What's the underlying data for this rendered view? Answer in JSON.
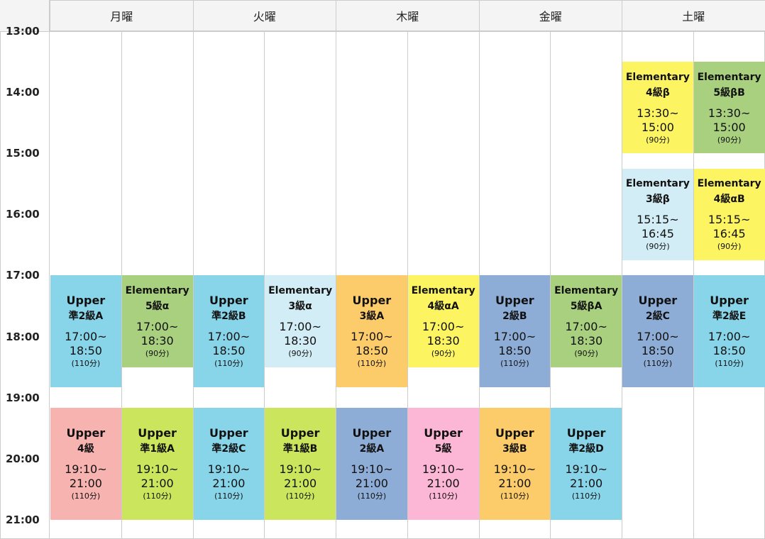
{
  "time_labels": [
    "13:00",
    "14:00",
    "15:00",
    "16:00",
    "17:00",
    "18:00",
    "19:00",
    "20:00",
    "21:00"
  ],
  "days": [
    {
      "name": "月曜",
      "columns": [
        [
          {
            "level": "Upper",
            "name": "準2級A",
            "start": "17:00~",
            "end": "18:50",
            "duration": "(110分)",
            "color": "#88d4e8"
          },
          {
            "level": "Upper",
            "name": "4級",
            "start": "19:10~",
            "end": "21:00",
            "duration": "(110分)",
            "color": "#f6b3b0"
          }
        ],
        [
          {
            "level": "Elementary",
            "name": "5級α",
            "start": "17:00~",
            "end": "18:30",
            "duration": "(90分)",
            "color": "#a8d07f"
          },
          {
            "level": "Upper",
            "name": "準1級A",
            "start": "19:10~",
            "end": "21:00",
            "duration": "(110分)",
            "color": "#cbe55c"
          }
        ]
      ]
    },
    {
      "name": "火曜",
      "columns": [
        [
          {
            "level": "Upper",
            "name": "準2級B",
            "start": "17:00~",
            "end": "18:50",
            "duration": "(110分)",
            "color": "#88d4e8"
          },
          {
            "level": "Upper",
            "name": "準2級C",
            "start": "19:10~",
            "end": "21:00",
            "duration": "(110分)",
            "color": "#88d4e8"
          }
        ],
        [
          {
            "level": "Elementary",
            "name": "3級α",
            "start": "17:00~",
            "end": "18:30",
            "duration": "(90分)",
            "color": "#d2edf5"
          },
          {
            "level": "Upper",
            "name": "準1級B",
            "start": "19:10~",
            "end": "21:00",
            "duration": "(110分)",
            "color": "#cbe55c"
          }
        ]
      ]
    },
    {
      "name": "木曜",
      "columns": [
        [
          {
            "level": "Upper",
            "name": "3級A",
            "start": "17:00~",
            "end": "18:50",
            "duration": "(110分)",
            "color": "#fdcc6a"
          },
          {
            "level": "Upper",
            "name": "2級A",
            "start": "19:10~",
            "end": "21:00",
            "duration": "(110分)",
            "color": "#8eadd6"
          }
        ],
        [
          {
            "level": "Elementary",
            "name": "4級αA",
            "start": "17:00~",
            "end": "18:30",
            "duration": "(90分)",
            "color": "#fcf461"
          },
          {
            "level": "Upper",
            "name": "5級",
            "start": "19:10~",
            "end": "21:00",
            "duration": "(110分)",
            "color": "#fcb7d6"
          }
        ]
      ]
    },
    {
      "name": "金曜",
      "columns": [
        [
          {
            "level": "Upper",
            "name": "2級B",
            "start": "17:00~",
            "end": "18:50",
            "duration": "(110分)",
            "color": "#8eadd6"
          },
          {
            "level": "Upper",
            "name": "3級B",
            "start": "19:10~",
            "end": "21:00",
            "duration": "(110分)",
            "color": "#fdcc6a"
          }
        ],
        [
          {
            "level": "Elementary",
            "name": "5級βA",
            "start": "17:00~",
            "end": "18:30",
            "duration": "(90分)",
            "color": "#a8d07f"
          },
          {
            "level": "Upper",
            "name": "準2級D",
            "start": "19:10~",
            "end": "21:00",
            "duration": "(110分)",
            "color": "#88d4e8"
          }
        ]
      ]
    },
    {
      "name": "土曜",
      "columns": [
        [
          {
            "level": "Elementary",
            "name": "4級β",
            "start": "13:30~",
            "end": "15:00",
            "duration": "(90分)",
            "color": "#fcf461"
          },
          {
            "level": "Elementary",
            "name": "3級β",
            "start": "15:15~",
            "end": "16:45",
            "duration": "(90分)",
            "color": "#d2edf5"
          },
          {
            "level": "Upper",
            "name": "2級C",
            "start": "17:00~",
            "end": "18:50",
            "duration": "(110分)",
            "color": "#8eadd6"
          }
        ],
        [
          {
            "level": "Elementary",
            "name": "5級βB",
            "start": "13:30~",
            "end": "15:00",
            "duration": "(90分)",
            "color": "#a8d07f"
          },
          {
            "level": "Elementary",
            "name": "4級αB",
            "start": "15:15~",
            "end": "16:45",
            "duration": "(90分)",
            "color": "#fcf461"
          },
          {
            "level": "Upper",
            "name": "準2級E",
            "start": "17:00~",
            "end": "18:50",
            "duration": "(110分)",
            "color": "#88d4e8"
          }
        ]
      ]
    }
  ]
}
